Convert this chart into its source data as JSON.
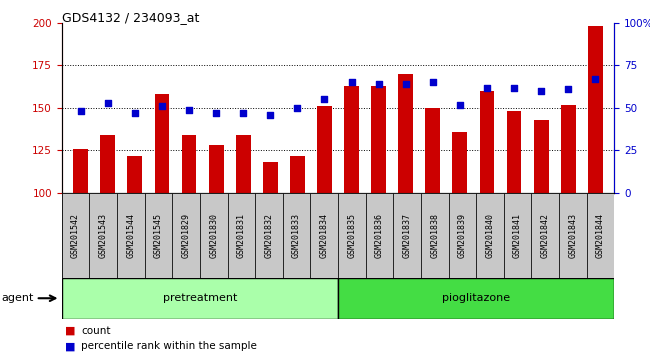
{
  "title": "GDS4132 / 234093_at",
  "samples": [
    "GSM201542",
    "GSM201543",
    "GSM201544",
    "GSM201545",
    "GSM201829",
    "GSM201830",
    "GSM201831",
    "GSM201832",
    "GSM201833",
    "GSM201834",
    "GSM201835",
    "GSM201836",
    "GSM201837",
    "GSM201838",
    "GSM201839",
    "GSM201840",
    "GSM201841",
    "GSM201842",
    "GSM201843",
    "GSM201844"
  ],
  "counts": [
    126,
    134,
    122,
    158,
    134,
    128,
    134,
    118,
    122,
    151,
    163,
    163,
    170,
    150,
    136,
    160,
    148,
    143,
    152,
    198
  ],
  "percentiles": [
    48,
    53,
    47,
    51,
    49,
    47,
    47,
    46,
    50,
    55,
    65,
    64,
    64,
    65,
    52,
    62,
    62,
    60,
    61,
    67
  ],
  "n_pretreatment": 10,
  "n_pioglitazone": 10,
  "bar_color": "#cc0000",
  "dot_color": "#0000cc",
  "ylim_left": [
    100,
    200
  ],
  "ylim_right": [
    0,
    100
  ],
  "yticks_left": [
    100,
    125,
    150,
    175,
    200
  ],
  "yticks_right": [
    0,
    25,
    50,
    75,
    100
  ],
  "ytick_right_labels": [
    "0",
    "25",
    "50",
    "75",
    "100%"
  ],
  "grid_values": [
    125,
    150,
    175
  ],
  "bg_color": "#c8c8c8",
  "pretreatment_color": "#aaffaa",
  "pioglitazone_color": "#44dd44",
  "agent_label": "agent",
  "pretreatment_label": "pretreatment",
  "pioglitazone_label": "pioglitazone",
  "legend_count": "count",
  "legend_pct": "percentile rank within the sample",
  "title_fontsize": 9,
  "axis_fontsize": 7.5,
  "tick_label_fontsize": 6,
  "group_label_fontsize": 8,
  "legend_fontsize": 7.5
}
